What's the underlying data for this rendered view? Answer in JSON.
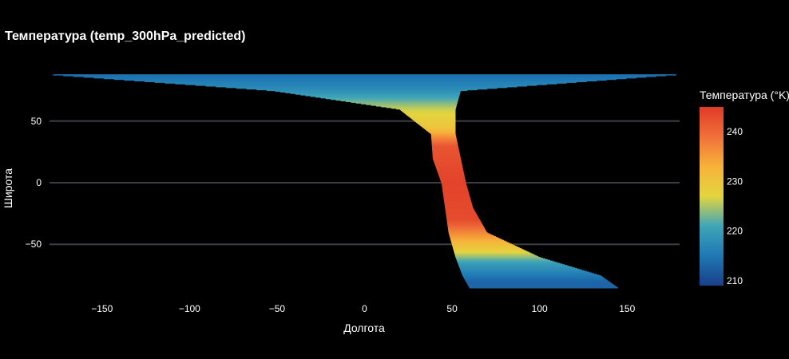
{
  "chart_data": {
    "type": "scatter",
    "title": "Температура (temp_300hPa_predicted)",
    "xlabel": "Долгота",
    "ylabel": "Широта",
    "xlim": [
      -180,
      180
    ],
    "ylim": [
      -90,
      90
    ],
    "x_ticks": [
      -150,
      -100,
      -50,
      0,
      50,
      100,
      150
    ],
    "x_tick_labels": [
      "−150",
      "−100",
      "−50",
      "0",
      "50",
      "100",
      "150"
    ],
    "y_ticks": [
      -50,
      0,
      50
    ],
    "y_tick_labels": [
      "−50",
      "0",
      "50"
    ],
    "grid_y": true,
    "grid_x": false,
    "colorbar": {
      "title": "Температура (°K)",
      "range": [
        209,
        245
      ],
      "ticks": [
        210,
        220,
        230,
        240
      ],
      "tick_labels": [
        "210",
        "220",
        "230",
        "240"
      ],
      "colorscale": [
        "#1a3f8a",
        "#1f78b4",
        "#3fa5b8",
        "#e3d53f",
        "#f7b23a",
        "#f0703a",
        "#e03a28"
      ]
    },
    "swath": {
      "description_points_lat_lon": [
        {
          "lat": 88,
          "lon_west": -178,
          "lon_east": 178
        },
        {
          "lat": 75,
          "lon_west": -52,
          "lon_east": 55
        },
        {
          "lat": 60,
          "lon_west": 20,
          "lon_east": 52
        },
        {
          "lat": 40,
          "lon_west": 38,
          "lon_east": 52
        },
        {
          "lat": 20,
          "lon_west": 39,
          "lon_east": 55
        },
        {
          "lat": 0,
          "lon_west": 44,
          "lon_east": 58
        },
        {
          "lat": -20,
          "lon_west": 46,
          "lon_east": 62
        },
        {
          "lat": -40,
          "lon_west": 48,
          "lon_east": 70
        },
        {
          "lat": -60,
          "lon_west": 52,
          "lon_east": 100
        },
        {
          "lat": -75,
          "lon_west": 56,
          "lon_east": 135
        },
        {
          "lat": -85,
          "lon_west": 60,
          "lon_east": 145
        }
      ],
      "temperature_by_lat": [
        {
          "lat": 88,
          "temp": 214
        },
        {
          "lat": 75,
          "temp": 218
        },
        {
          "lat": 60,
          "temp": 226
        },
        {
          "lat": 45,
          "temp": 230
        },
        {
          "lat": 30,
          "temp": 242
        },
        {
          "lat": 0,
          "temp": 244
        },
        {
          "lat": -30,
          "temp": 243
        },
        {
          "lat": -45,
          "temp": 234
        },
        {
          "lat": -55,
          "temp": 228
        },
        {
          "lat": -65,
          "temp": 220
        },
        {
          "lat": -80,
          "temp": 213
        }
      ]
    }
  }
}
